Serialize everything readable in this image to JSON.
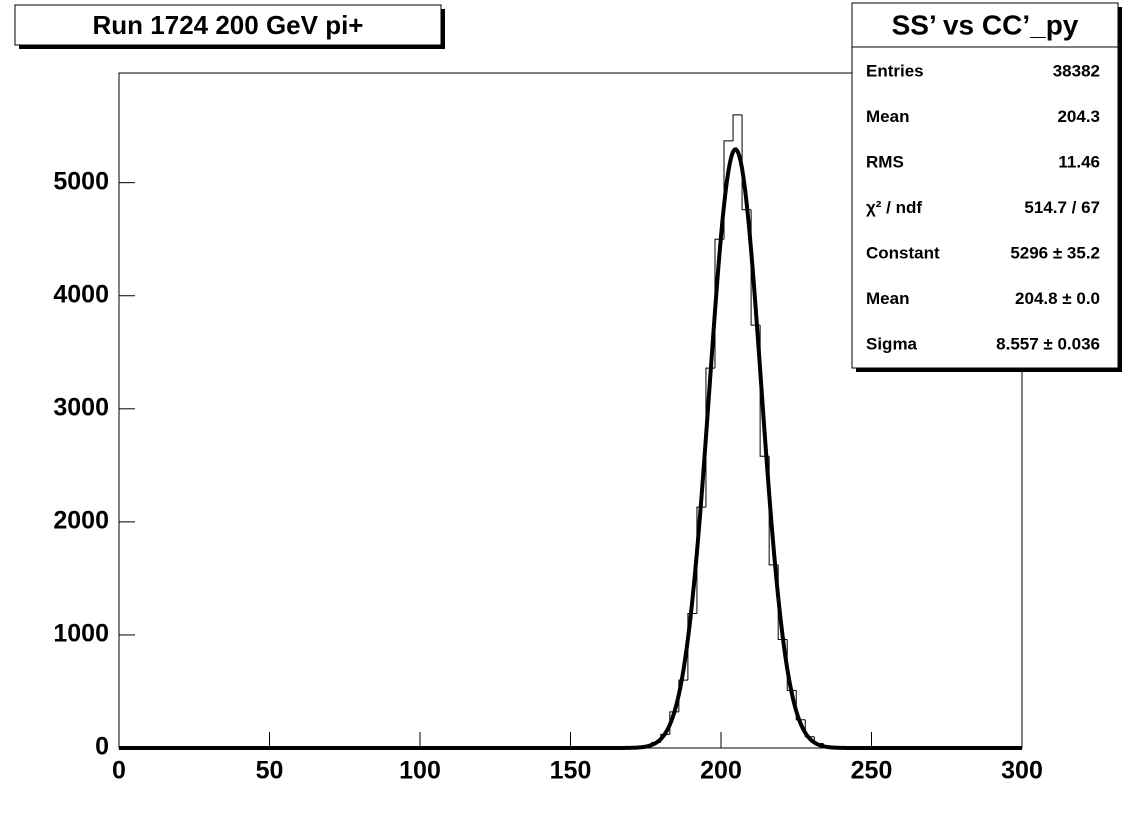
{
  "chart_data": {
    "type": "histogram",
    "title": "Run 1724  200 GeV  pi+",
    "bins": [
      171,
      174,
      177,
      180,
      183,
      186,
      189,
      192,
      195,
      198,
      201,
      204,
      207,
      210,
      213,
      216,
      219,
      222,
      225,
      228,
      231,
      234,
      237
    ],
    "values": [
      5,
      20,
      50,
      120,
      320,
      600,
      1190,
      2130,
      3360,
      4500,
      5370,
      5600,
      4760,
      3740,
      2580,
      1620,
      960,
      510,
      250,
      100,
      40,
      15
    ],
    "color": "#000000",
    "fit": {
      "constant": 5296,
      "mean": 204.8,
      "sigma": 8.557,
      "color": "#000000"
    },
    "xlim": [
      0,
      300
    ],
    "xticks": [
      0,
      50,
      100,
      150,
      200,
      250,
      300
    ],
    "ylim": [
      0,
      5970
    ],
    "yticks": [
      0,
      1000,
      2000,
      3000,
      4000,
      5000
    ],
    "stats": {
      "title": "SS’ vs CC’_py",
      "rows": [
        [
          "Entries",
          "38382"
        ],
        [
          "Mean",
          "204.3"
        ],
        [
          "RMS",
          "11.46"
        ],
        [
          "χ² / ndf",
          "514.7 / 67"
        ],
        [
          "Constant",
          "5296 ± 35.2"
        ],
        [
          "Mean",
          "204.8 ± 0.0"
        ],
        [
          "Sigma",
          "8.557 ± 0.036"
        ]
      ]
    }
  }
}
